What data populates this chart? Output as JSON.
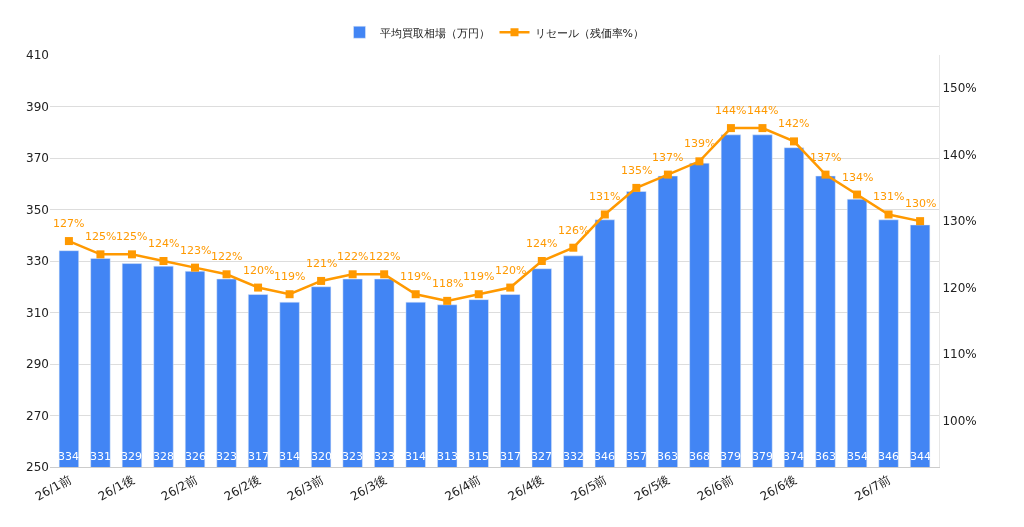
{
  "chart_data": {
    "type": "bar",
    "categories": [
      "26/1前",
      null,
      "26/1後",
      null,
      "26/2前",
      null,
      "26/2後",
      null,
      "26/3前",
      null,
      "26/3後",
      null,
      null,
      "26/4前",
      null,
      "26/4後",
      null,
      "26/5前",
      null,
      "26/5後",
      null,
      "26/6前",
      null,
      "26/6後",
      null,
      null,
      "26/7前",
      null
    ],
    "series": [
      {
        "name": "平均買取相場（万円）",
        "color": "#4285f4",
        "data_labels": true,
        "values": [
          334,
          331,
          329,
          328,
          326,
          323,
          317,
          314,
          320,
          323,
          323,
          314,
          313,
          315,
          317,
          327,
          332,
          346,
          357,
          363,
          368,
          379,
          379,
          374,
          363,
          354,
          346,
          344
        ]
      },
      {
        "name": "リセール（残価率%）",
        "type": "line",
        "axis": "y2",
        "color": "#ff9900",
        "marker": "square",
        "values": [
          127,
          125,
          125,
          124,
          123,
          122,
          120,
          119,
          121,
          122,
          122,
          119,
          118,
          119,
          120,
          124,
          126,
          131,
          135,
          137,
          139,
          144,
          144,
          142,
          137,
          134,
          131,
          130
        ],
        "value_labels": [
          "127%",
          "125%",
          "125%",
          "124%",
          "123%",
          "122%",
          "120%",
          "119%",
          "121%",
          "122%",
          "122%",
          "119%",
          "118%",
          "119%",
          "120%",
          "124%",
          "126%",
          "131%",
          "135%",
          "137%",
          "139%",
          "144%",
          "144%",
          "142%",
          "137%",
          "134%",
          "131%",
          "130%"
        ]
      }
    ],
    "ylim": [
      250,
      410
    ],
    "yticks": [
      250,
      270,
      290,
      310,
      330,
      350,
      370,
      390,
      410
    ],
    "y2lim": [
      93,
      155
    ],
    "y2ticks": [
      {
        "value": 100,
        "label": "100%"
      },
      {
        "value": 110,
        "label": "110%"
      },
      {
        "value": 120,
        "label": "120%"
      },
      {
        "value": 130,
        "label": "130%"
      },
      {
        "value": 140,
        "label": "140%"
      },
      {
        "value": 150,
        "label": "150%"
      }
    ],
    "grid": "y",
    "legend": "top"
  }
}
